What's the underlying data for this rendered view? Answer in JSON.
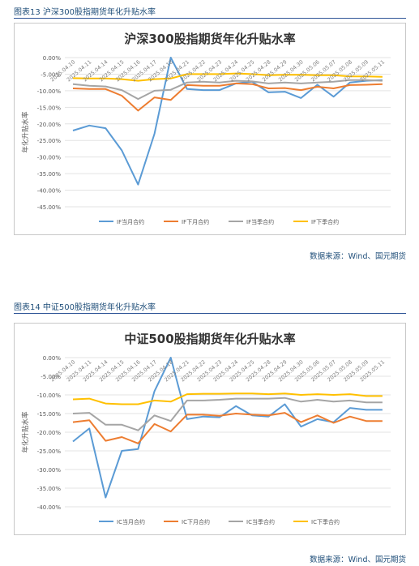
{
  "figures": [
    {
      "caption": "图表13 沪深300股指期货年化升贴水率",
      "source": "数据来源：Wind、国元期货",
      "chart_data": {
        "type": "line",
        "title": "沪深300股指期货年化升贴水率",
        "ylabel": "年化升贴水率",
        "xlabel": "",
        "ylim": [
          -45,
          0
        ],
        "yticks": [
          0,
          -5,
          -10,
          -15,
          -20,
          -25,
          -30,
          -35,
          -40,
          -45
        ],
        "ytick_labels": [
          "0.00%",
          "-5.00%",
          "-10.00%",
          "-15.00%",
          "-20.00%",
          "-25.00%",
          "-30.00%",
          "-35.00%",
          "-40.00%",
          "-45.00%"
        ],
        "grid": true,
        "legend": "bottom",
        "categories": [
          "2025.04.10",
          "2025.04.11",
          "2025.04.14",
          "2025.04.15",
          "2025.04.16",
          "2025.04.17",
          "2025.04.18",
          "2025.04.21",
          "2025.04.22",
          "2025.04.23",
          "2025.04.24",
          "2025.04.25",
          "2025.04.28",
          "2025.04.29",
          "2025.04.30",
          "2025.05.06",
          "2025.05.07",
          "2025.05.08",
          "2025.05.09",
          "2025.05.11"
        ],
        "x": [
          0,
          1,
          2,
          3,
          4,
          5,
          6,
          7,
          8,
          9,
          10,
          11,
          12,
          13,
          14,
          15,
          16,
          17,
          18,
          19
        ],
        "series": [
          {
            "name": "IF当月合约",
            "color": "#5b9bd5",
            "values": [
              -22,
              -20.5,
              -21.3,
              -28,
              -38.3,
              -23,
              0,
              -9.5,
              -9.8,
              -9.8,
              -7.8,
              -7.3,
              -10.5,
              -10.3,
              -12.2,
              -8.2,
              -11.8,
              -7.5,
              -7,
              -6.8
            ]
          },
          {
            "name": "IF下月合约",
            "color": "#ed7d31",
            "values": [
              -9.3,
              -9.5,
              -9.5,
              -11.5,
              -16,
              -12,
              -12.8,
              -8.3,
              -8.5,
              -8.5,
              -7.8,
              -8,
              -9.3,
              -9.2,
              -9.8,
              -8.8,
              -9.3,
              -8.3,
              -8.2,
              -8
            ]
          },
          {
            "name": "IF当季合约",
            "color": "#a5a5a5",
            "values": [
              -8,
              -8.5,
              -8.7,
              -9.8,
              -12.5,
              -10,
              -9.7,
              -7.5,
              -7.3,
              -7.5,
              -7,
              -7.2,
              -7.8,
              -7.5,
              -7.8,
              -7.5,
              -7.3,
              -6.8,
              -6.8,
              -7
            ]
          },
          {
            "name": "IF下季合约",
            "color": "#ffc000",
            "values": [
              -6.2,
              -6.3,
              -6.3,
              -6.5,
              -7,
              -6.5,
              -6.3,
              -5,
              -5,
              -5,
              -4.8,
              -5,
              -5.3,
              -5.2,
              -5.2,
              -5.3,
              -5.3,
              -5.7,
              -5.7,
              -5.8
            ]
          }
        ]
      }
    },
    {
      "caption": "图表14 中证500股指期货年化升贴水率",
      "source": "数据来源：Wind、国元期货",
      "chart_data": {
        "type": "line",
        "title": "中证500股指期货年化升贴水率",
        "ylabel": "年化升贴水率",
        "xlabel": "",
        "ylim": [
          -40,
          0
        ],
        "yticks": [
          0,
          -5,
          -10,
          -15,
          -20,
          -25,
          -30,
          -35,
          -40
        ],
        "ytick_labels": [
          "0.00%",
          "-5.00%",
          "-10.00%",
          "-15.00%",
          "-20.00%",
          "-25.00%",
          "-30.00%",
          "-35.00%",
          "-40.00%"
        ],
        "grid": true,
        "legend": "bottom",
        "categories": [
          "2025.04.10",
          "2025.04.11",
          "2025.04.14",
          "2025.04.15",
          "2025.04.16",
          "2025.04.17",
          "2025.04.18",
          "2025.04.21",
          "2025.04.22",
          "2025.04.23",
          "2025.04.24",
          "2025.04.25",
          "2025.04.28",
          "2025.04.29",
          "2025.04.30",
          "2025.05.06",
          "2025.05.07",
          "2025.05.08",
          "2025.05.09",
          "2025.05.11"
        ],
        "x": [
          0,
          1,
          2,
          3,
          4,
          5,
          6,
          7,
          8,
          9,
          10,
          11,
          12,
          13,
          14,
          15,
          16,
          17,
          18,
          19
        ],
        "series": [
          {
            "name": "IC当月合约",
            "color": "#5b9bd5",
            "values": [
              -22.5,
              -19,
              -37.5,
              -25,
              -24.5,
              -9,
              0,
              -16.5,
              -15.8,
              -16,
              -13,
              -15.5,
              -15.8,
              -12.5,
              -18.5,
              -16.5,
              -17.3,
              -13.5,
              -14,
              -14
            ]
          },
          {
            "name": "IC下月合约",
            "color": "#ed7d31",
            "values": [
              -17.3,
              -16.8,
              -22.3,
              -21.3,
              -23,
              -17.8,
              -19.8,
              -15.3,
              -15.3,
              -15.6,
              -15,
              -15.3,
              -15.5,
              -14.8,
              -17.3,
              -15.5,
              -17.5,
              -15.8,
              -17,
              -17
            ]
          },
          {
            "name": "IC当季合约",
            "color": "#a5a5a5",
            "values": [
              -15,
              -14.8,
              -18,
              -18,
              -19.5,
              -15.5,
              -17,
              -11.5,
              -11.5,
              -11.3,
              -11,
              -11,
              -11,
              -10.8,
              -11.8,
              -11.3,
              -11.8,
              -11.5,
              -12,
              -12
            ]
          },
          {
            "name": "IC下季合约",
            "color": "#ffc000",
            "values": [
              -11.2,
              -11,
              -12.3,
              -12.5,
              -12.5,
              -11.5,
              -11.8,
              -9.8,
              -9.7,
              -9.7,
              -9.6,
              -9.6,
              -9.8,
              -9.6,
              -10,
              -9.8,
              -10,
              -9.8,
              -10.3,
              -10.3
            ]
          }
        ]
      }
    }
  ]
}
